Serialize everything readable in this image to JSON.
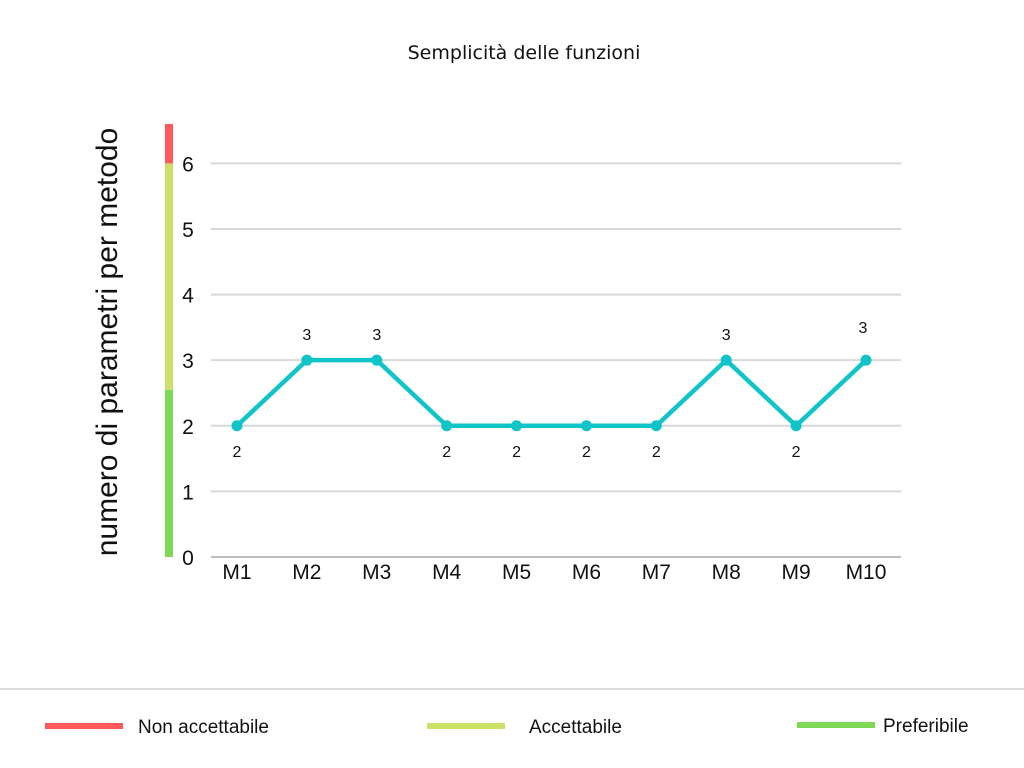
{
  "chart_data": {
    "type": "line",
    "title": "Semplicità delle funzioni",
    "ylabel": "numero di parametri per metodo",
    "xlabel": "",
    "categories": [
      "M1",
      "M2",
      "M3",
      "M4",
      "M5",
      "M6",
      "M7",
      "M8",
      "M9",
      "M10"
    ],
    "series": [
      {
        "values": [
          2,
          3,
          3,
          2,
          2,
          2,
          2,
          3,
          2,
          3
        ],
        "color": "#11c4c8"
      }
    ],
    "data_labels": [
      "2",
      "3",
      "3",
      "2",
      "2",
      "2",
      "2",
      "3",
      "2",
      "3"
    ],
    "y_ticks": [
      "0",
      "1",
      "2",
      "3",
      "4",
      "5",
      "6"
    ],
    "ylim": [
      0,
      6.6
    ],
    "grid": true,
    "quality_bands": [
      {
        "from": 0,
        "to": 2.55,
        "color": "#7ed957"
      },
      {
        "from": 2.55,
        "to": 6,
        "color": "#cfe06a"
      },
      {
        "from": 6,
        "to": 6.6,
        "color": "#ff5a5a"
      }
    ],
    "legend": {
      "position": "bottom",
      "items": [
        {
          "label": "Non accettabile",
          "color": "#ff5a5a"
        },
        {
          "label": "Accettabile",
          "color": "#c9e265"
        },
        {
          "label": "Preferibile",
          "color": "#7ed957"
        }
      ]
    }
  }
}
